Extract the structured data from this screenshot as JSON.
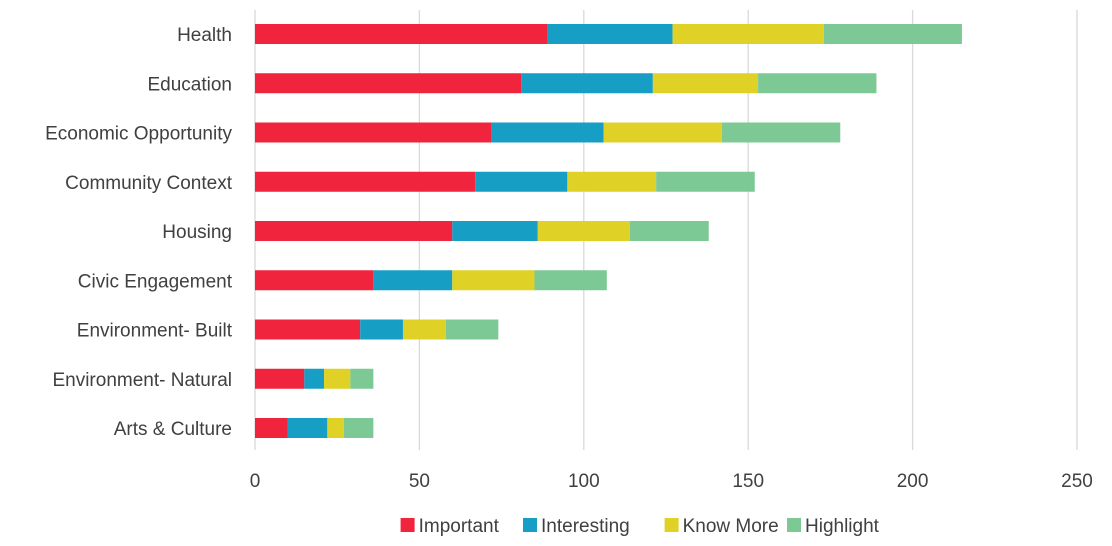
{
  "chart_data": {
    "type": "bar",
    "orientation": "horizontal",
    "stacked": true,
    "title": "",
    "xlabel": "",
    "ylabel": "",
    "categories": [
      "Health",
      "Education",
      "Economic Opportunity",
      "Community Context",
      "Housing",
      "Civic Engagement",
      "Environment- Built",
      "Environment- Natural",
      "Arts & Culture"
    ],
    "series": [
      {
        "name": "Important",
        "color": "#f0243c",
        "values": [
          89,
          81,
          72,
          67,
          60,
          36,
          32,
          15,
          10
        ]
      },
      {
        "name": "Interesting",
        "color": "#169ec4",
        "values": [
          38,
          40,
          34,
          28,
          26,
          24,
          13,
          6,
          12
        ]
      },
      {
        "name": "Know More",
        "color": "#e0d126",
        "values": [
          46,
          32,
          36,
          27,
          28,
          25,
          13,
          8,
          5
        ]
      },
      {
        "name": "Highlight",
        "color": "#7dc995",
        "values": [
          42,
          36,
          36,
          30,
          24,
          22,
          16,
          7,
          9
        ]
      }
    ],
    "xlim": [
      0,
      250
    ],
    "xticks": [
      "0",
      "50",
      "100",
      "150",
      "200",
      "250"
    ],
    "grid": true,
    "legend_position": "bottom"
  }
}
